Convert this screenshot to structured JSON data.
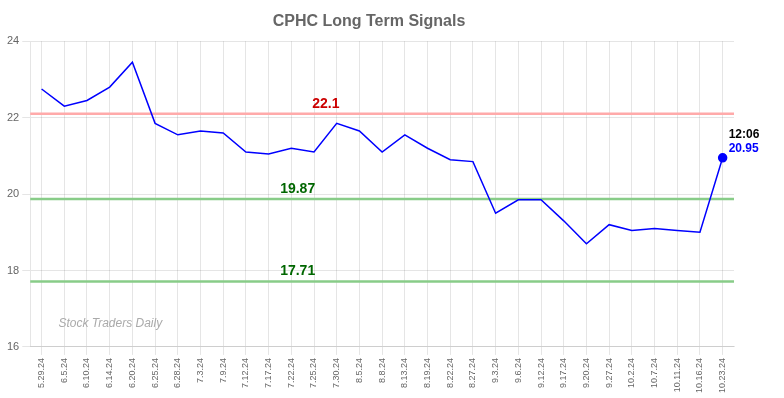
{
  "chart_data": {
    "type": "line",
    "title": "CPHC Long Term Signals",
    "categories": [
      "5.29.24",
      "6.5.24",
      "6.10.24",
      "6.14.24",
      "6.20.24",
      "6.25.24",
      "6.28.24",
      "7.3.24",
      "7.9.24",
      "7.12.24",
      "7.17.24",
      "7.22.24",
      "7.25.24",
      "7.30.24",
      "8.5.24",
      "8.8.24",
      "8.13.24",
      "8.19.24",
      "8.22.24",
      "8.27.24",
      "9.3.24",
      "9.6.24",
      "9.12.24",
      "9.17.24",
      "9.20.24",
      "9.27.24",
      "10.2.24",
      "10.7.24",
      "10.11.24",
      "10.16.24",
      "10.23.24"
    ],
    "series": [
      {
        "name": "CPHC",
        "color": "blue",
        "values": [
          22.75,
          22.3,
          22.45,
          22.8,
          23.45,
          21.85,
          21.55,
          21.65,
          21.6,
          21.1,
          21.05,
          21.2,
          21.1,
          21.85,
          21.65,
          21.1,
          21.55,
          21.2,
          20.9,
          20.85,
          19.5,
          19.85,
          19.85,
          19.3,
          18.7,
          19.2,
          19.05,
          19.1,
          19.05,
          19.0,
          20.95
        ]
      }
    ],
    "annotations": [
      {
        "text": "22.1",
        "y": 22.1,
        "color": "#cc0000",
        "line_color": "#ffaaaa"
      },
      {
        "text": "19.87",
        "y": 19.87,
        "color": "#006600",
        "line_color": "#88cc88"
      },
      {
        "text": "17.71",
        "y": 17.71,
        "color": "#006600",
        "line_color": "#88cc88"
      },
      {
        "text": "12:06",
        "at": "10.23.24",
        "color": "black"
      },
      {
        "text": "20.95",
        "at": "10.23.24",
        "color": "blue"
      },
      {
        "text": "Stock Traders Daily",
        "color": "#aaaaaa"
      }
    ],
    "ylim": [
      16,
      24
    ],
    "yticks": [
      16,
      18,
      20,
      22,
      24
    ],
    "grid": true
  }
}
